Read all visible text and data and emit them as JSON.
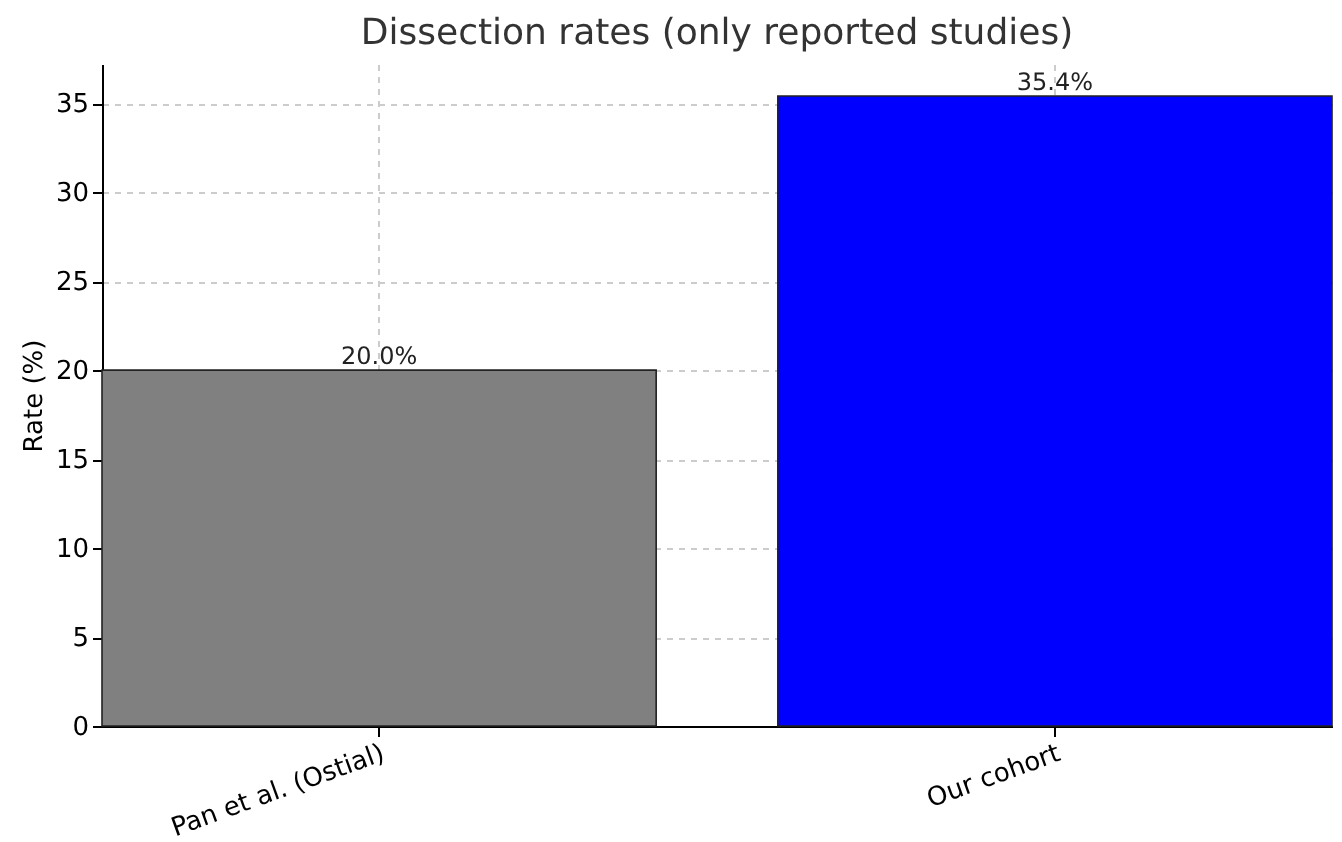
{
  "chart_data": {
    "type": "bar",
    "title": "Dissection rates (only reported studies)",
    "ylabel": "Rate (%)",
    "categories": [
      "Pan et al. (Ostial)",
      "Our cohort"
    ],
    "values": [
      20.0,
      35.4
    ],
    "colors": [
      "#808080",
      "#0000ff"
    ],
    "value_labels": [
      "20.0%",
      "35.4%"
    ],
    "ylim": [
      0,
      37.2
    ],
    "yticks": [
      0,
      5,
      10,
      15,
      20,
      25,
      30,
      35
    ],
    "grid": true
  }
}
